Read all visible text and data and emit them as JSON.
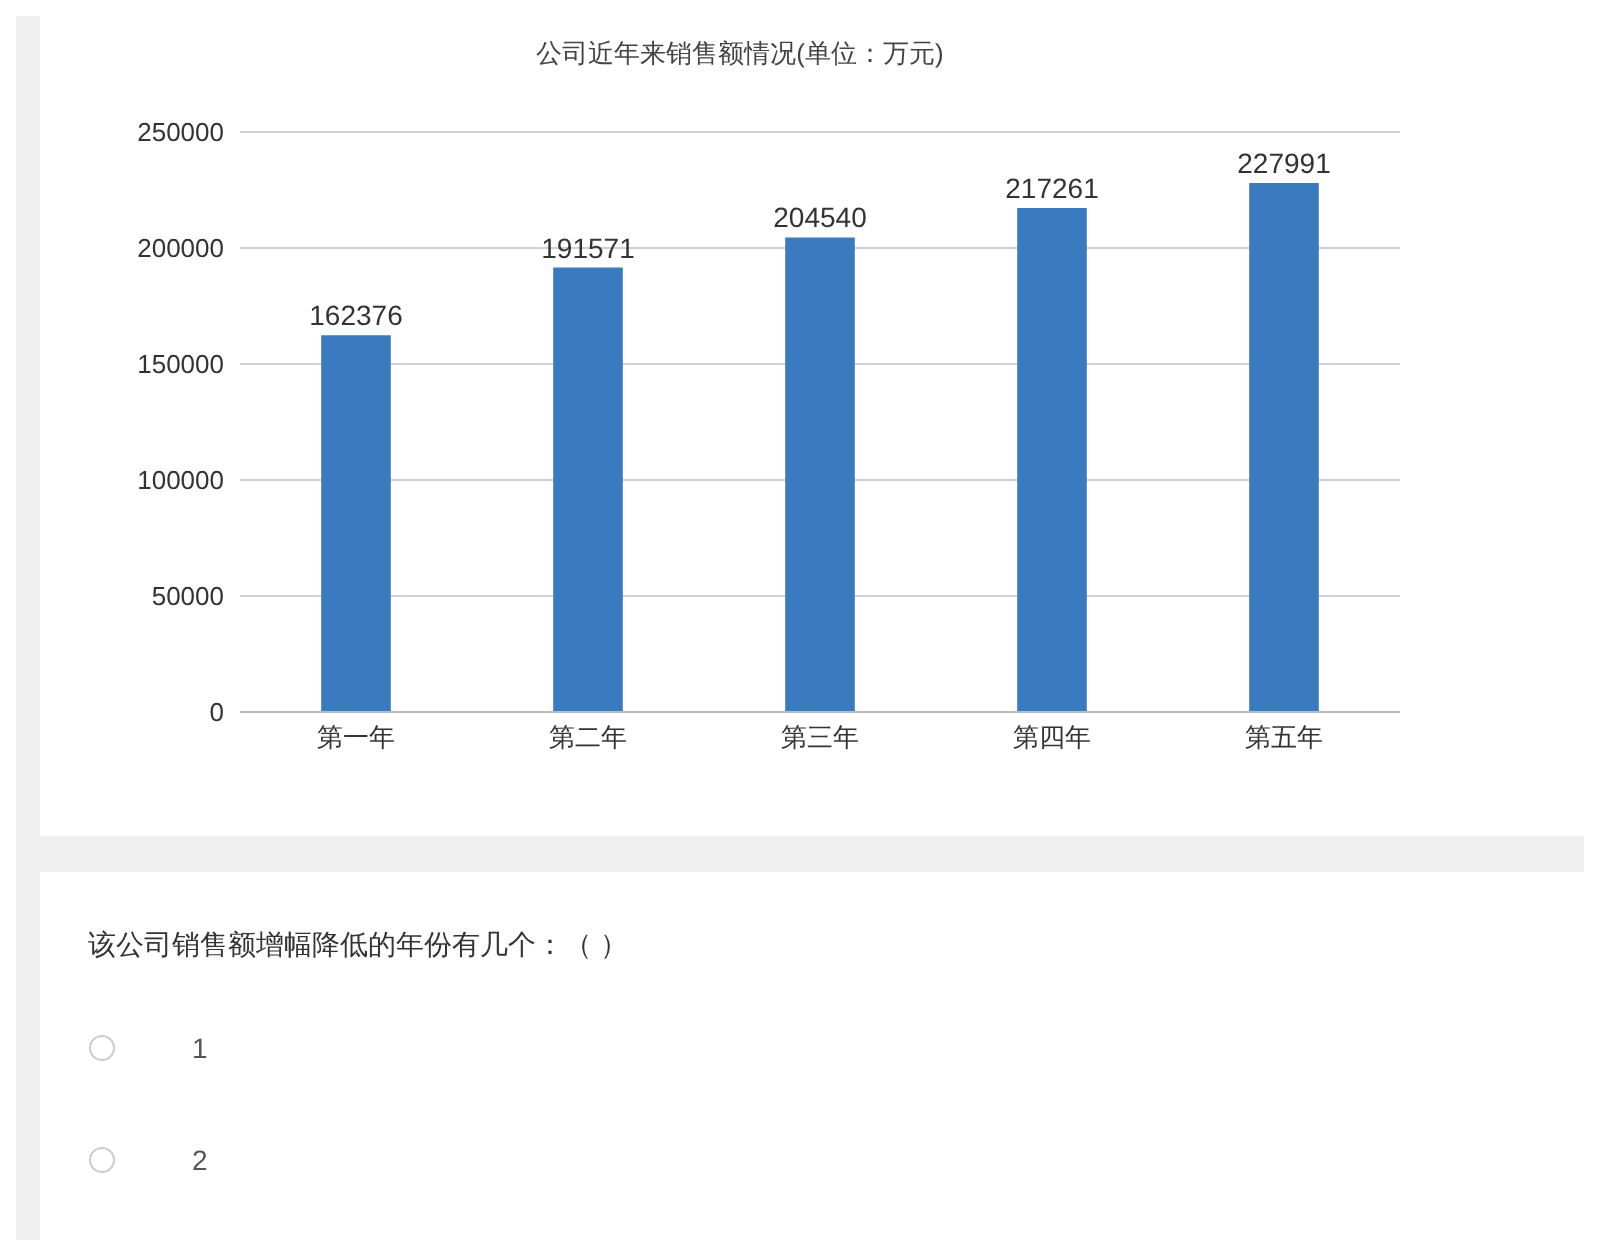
{
  "chart_data": {
    "type": "bar",
    "title": "公司近年来销售额情况(单位：万元)",
    "categories": [
      "第一年",
      "第二年",
      "第三年",
      "第四年",
      "第五年"
    ],
    "values": [
      162376,
      191571,
      204540,
      217261,
      227991
    ],
    "color": "#3a7abf",
    "ylim": [
      0,
      250000
    ],
    "yticks": [
      0,
      50000,
      100000,
      150000,
      200000,
      250000
    ],
    "grid": "y",
    "data_labels": true,
    "annotations": [
      "该公司销售额增幅降低的年份有几个：（ ）",
      "1",
      "2"
    ]
  }
}
